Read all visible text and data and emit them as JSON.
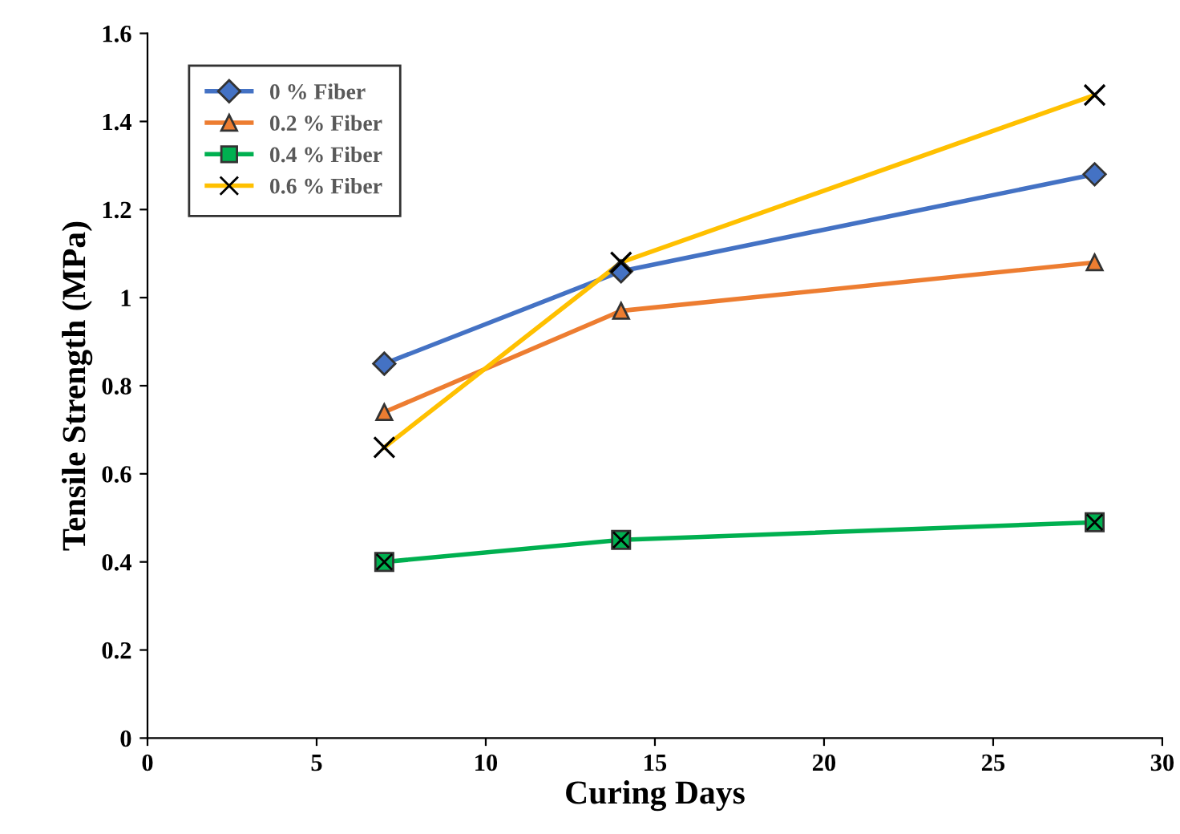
{
  "chart_data": {
    "type": "line",
    "xlabel": "Curing Days",
    "ylabel": "Tensile Strength (MPa)",
    "x": [
      7,
      14,
      28
    ],
    "series": [
      {
        "name": "0 % Fiber",
        "color": "#4472c4",
        "marker": "diamond",
        "values": [
          0.85,
          1.06,
          1.28
        ]
      },
      {
        "name": "0.2 % Fiber",
        "color": "#ed7d31",
        "marker": "triangle",
        "values": [
          0.74,
          0.97,
          1.08
        ]
      },
      {
        "name": "0.4 % Fiber",
        "color": "#00b050",
        "marker": "square",
        "values": [
          0.4,
          0.45,
          0.49
        ]
      },
      {
        "name": "0.6 % Fiber",
        "color": "#ffc000",
        "marker": "cross",
        "values": [
          0.66,
          1.08,
          1.46
        ]
      }
    ],
    "xlim": [
      0,
      30
    ],
    "xticks": [
      0,
      5,
      10,
      15,
      20,
      25,
      30
    ],
    "ylim": [
      0,
      1.6
    ],
    "yticks": [
      {
        "value": 0,
        "label": "0"
      },
      {
        "value": 0.2,
        "label": "0.2"
      },
      {
        "value": 0.4,
        "label": "0.4"
      },
      {
        "value": 0.6,
        "label": "0.6"
      },
      {
        "value": 0.8,
        "label": "0.8"
      },
      {
        "value": 1,
        "label": "1"
      },
      {
        "value": 1.2,
        "label": "1.2"
      },
      {
        "value": 1.4,
        "label": "1.4"
      },
      {
        "value": 1.6,
        "label": "1.6"
      }
    ],
    "grid": false,
    "legend": "top left"
  }
}
